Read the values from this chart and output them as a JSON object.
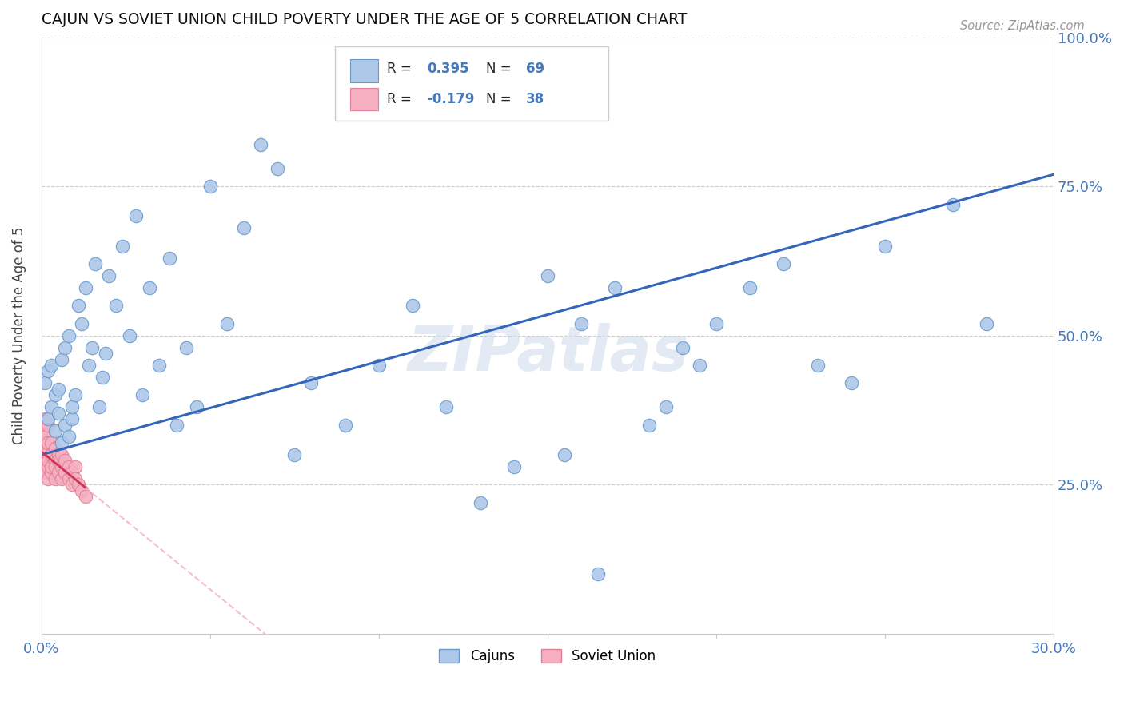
{
  "title": "CAJUN VS SOVIET UNION CHILD POVERTY UNDER THE AGE OF 5 CORRELATION CHART",
  "source": "Source: ZipAtlas.com",
  "ylabel": "Child Poverty Under the Age of 5",
  "x_min": 0.0,
  "x_max": 0.3,
  "y_min": 0.0,
  "y_max": 1.0,
  "x_ticks": [
    0.0,
    0.05,
    0.1,
    0.15,
    0.2,
    0.25,
    0.3
  ],
  "x_tick_labels": [
    "0.0%",
    "",
    "",
    "",
    "",
    "",
    "30.0%"
  ],
  "y_ticks_right": [
    0.0,
    0.25,
    0.5,
    0.75,
    1.0
  ],
  "y_tick_labels_right": [
    "",
    "25.0%",
    "50.0%",
    "75.0%",
    "100.0%"
  ],
  "cajun_color": "#adc8e8",
  "soviet_color": "#f5afc0",
  "cajun_edge_color": "#6699cc",
  "soviet_edge_color": "#e08098",
  "cajun_line_color": "#3366bb",
  "soviet_line_color": "#cc3355",
  "grid_color": "#cccccc",
  "label_color": "#4477bb",
  "R_cajun": 0.395,
  "N_cajun": 69,
  "R_soviet": -0.179,
  "N_soviet": 38,
  "watermark": "ZIPatlas",
  "cajun_x": [
    0.001,
    0.002,
    0.002,
    0.003,
    0.003,
    0.004,
    0.004,
    0.005,
    0.005,
    0.006,
    0.006,
    0.007,
    0.007,
    0.008,
    0.008,
    0.009,
    0.009,
    0.01,
    0.011,
    0.012,
    0.013,
    0.014,
    0.015,
    0.016,
    0.017,
    0.018,
    0.019,
    0.02,
    0.022,
    0.024,
    0.026,
    0.028,
    0.03,
    0.032,
    0.035,
    0.038,
    0.04,
    0.043,
    0.046,
    0.05,
    0.055,
    0.06,
    0.065,
    0.07,
    0.075,
    0.08,
    0.09,
    0.1,
    0.11,
    0.12,
    0.13,
    0.14,
    0.15,
    0.16,
    0.17,
    0.18,
    0.19,
    0.2,
    0.21,
    0.22,
    0.23,
    0.24,
    0.25,
    0.27,
    0.28,
    0.185,
    0.155,
    0.195,
    0.165
  ],
  "cajun_y": [
    0.42,
    0.36,
    0.44,
    0.38,
    0.45,
    0.34,
    0.4,
    0.37,
    0.41,
    0.32,
    0.46,
    0.35,
    0.48,
    0.33,
    0.5,
    0.36,
    0.38,
    0.4,
    0.55,
    0.52,
    0.58,
    0.45,
    0.48,
    0.62,
    0.38,
    0.43,
    0.47,
    0.6,
    0.55,
    0.65,
    0.5,
    0.7,
    0.4,
    0.58,
    0.45,
    0.63,
    0.35,
    0.48,
    0.38,
    0.75,
    0.52,
    0.68,
    0.82,
    0.78,
    0.3,
    0.42,
    0.35,
    0.45,
    0.55,
    0.38,
    0.22,
    0.28,
    0.6,
    0.52,
    0.58,
    0.35,
    0.48,
    0.52,
    0.58,
    0.62,
    0.45,
    0.42,
    0.65,
    0.72,
    0.52,
    0.38,
    0.3,
    0.45,
    0.1
  ],
  "soviet_x": [
    0.0,
    0.0,
    0.0,
    0.001,
    0.001,
    0.001,
    0.001,
    0.001,
    0.002,
    0.002,
    0.002,
    0.002,
    0.002,
    0.003,
    0.003,
    0.003,
    0.003,
    0.004,
    0.004,
    0.004,
    0.004,
    0.005,
    0.005,
    0.005,
    0.006,
    0.006,
    0.006,
    0.007,
    0.007,
    0.008,
    0.008,
    0.009,
    0.009,
    0.01,
    0.01,
    0.011,
    0.012,
    0.013
  ],
  "soviet_y": [
    0.29,
    0.31,
    0.34,
    0.28,
    0.3,
    0.33,
    0.36,
    0.27,
    0.28,
    0.32,
    0.29,
    0.35,
    0.26,
    0.3,
    0.27,
    0.32,
    0.28,
    0.29,
    0.26,
    0.31,
    0.28,
    0.27,
    0.3,
    0.29,
    0.28,
    0.26,
    0.3,
    0.27,
    0.29,
    0.26,
    0.28,
    0.27,
    0.25,
    0.28,
    0.26,
    0.25,
    0.24,
    0.23
  ],
  "cajun_line_x0": 0.0,
  "cajun_line_y0": 0.3,
  "cajun_line_x1": 0.3,
  "cajun_line_y1": 0.77,
  "soviet_line_x0": 0.0,
  "soviet_line_y0": 0.305,
  "soviet_line_x1": 0.013,
  "soviet_line_y1": 0.245
}
